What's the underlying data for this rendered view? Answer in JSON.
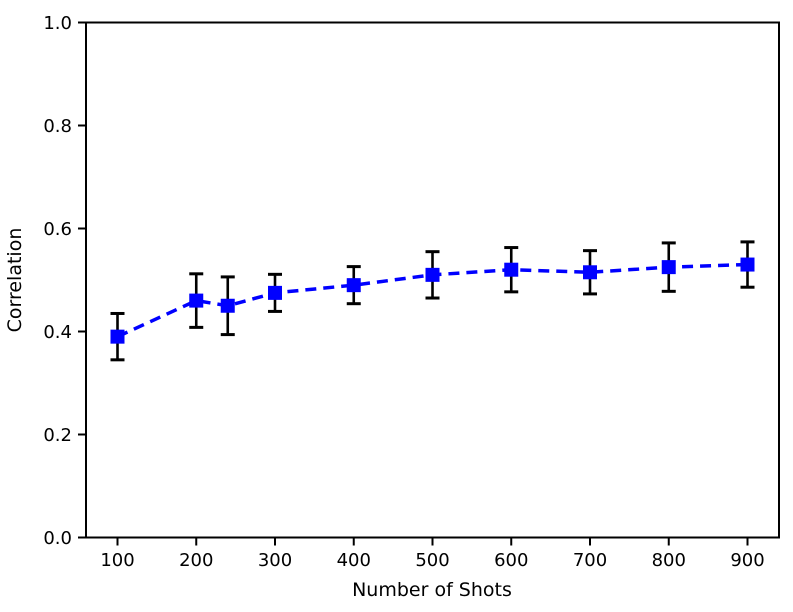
{
  "figure": {
    "background_color": "#FFFFFF"
  },
  "chart_data": {
    "type": "line",
    "title": "",
    "xlabel": "Number of Shots",
    "ylabel": "Correlation",
    "x": [
      100,
      200,
      240,
      300,
      400,
      500,
      600,
      700,
      800,
      900
    ],
    "y": [
      0.39,
      0.46,
      0.45,
      0.475,
      0.49,
      0.51,
      0.52,
      0.515,
      0.525,
      0.53
    ],
    "yerr": [
      0.045,
      0.052,
      0.056,
      0.036,
      0.036,
      0.045,
      0.043,
      0.042,
      0.047,
      0.044
    ],
    "xlim": [
      60,
      940
    ],
    "ylim": [
      0.0,
      1.0
    ],
    "xticks": [
      100,
      200,
      300,
      400,
      500,
      600,
      700,
      800,
      900
    ],
    "xtick_labels": [
      "100",
      "200",
      "300",
      "400",
      "500",
      "600",
      "700",
      "800",
      "900"
    ],
    "yticks": [
      0.0,
      0.2,
      0.4,
      0.6,
      0.8,
      1.0
    ],
    "ytick_labels": [
      "0.0",
      "0.2",
      "0.4",
      "0.6",
      "0.8",
      "1.0"
    ],
    "grid": false,
    "legend": null,
    "line_color": "#0000FF",
    "line_style": "dashed",
    "marker": "square",
    "marker_color": "#0000FF",
    "error_bar_color": "#000000",
    "axis_color": "#000000"
  }
}
